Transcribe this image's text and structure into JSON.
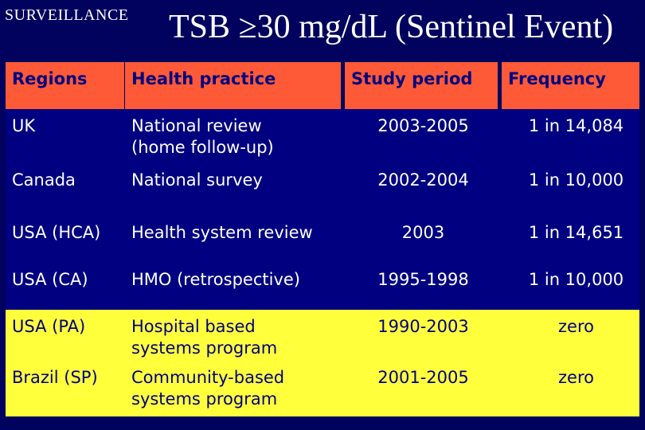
{
  "header": {
    "section_label": "SURVEILLANCE",
    "title": "TSB ≥30 mg/dL (Sentinel Event)"
  },
  "table": {
    "columns": [
      "Regions",
      "Health practice",
      "Study period",
      "Frequency"
    ],
    "rows": [
      {
        "region": "UK",
        "practice": [
          "National review",
          "(home follow-up)"
        ],
        "period": "2003-2005",
        "frequency": "1 in 14,084"
      },
      {
        "region": "Canada",
        "practice": [
          "National survey"
        ],
        "period": "2002-2004",
        "frequency": "1 in 10,000"
      },
      {
        "region": "USA (HCA)",
        "practice": [
          "Health system review"
        ],
        "period": "2003",
        "frequency": "1 in 14,651"
      },
      {
        "region": "USA (CA)",
        "practice": [
          "HMO (retrospective)"
        ],
        "period": "1995-1998",
        "frequency": "1 in 10,000"
      },
      {
        "region": "USA (PA)",
        "practice": [
          "Hospital based",
          "systems program"
        ],
        "period": "1990-2003",
        "frequency": "zero"
      },
      {
        "region": "Brazil (SP)",
        "practice": [
          "Community-based",
          "systems program"
        ],
        "period": "2001-2005",
        "frequency": "zero"
      }
    ]
  },
  "colors": {
    "background": "#01015e",
    "header_fill": "#ff5a37",
    "row_fill_blue": "#000080",
    "row_fill_yellow": "#ffff3c"
  }
}
